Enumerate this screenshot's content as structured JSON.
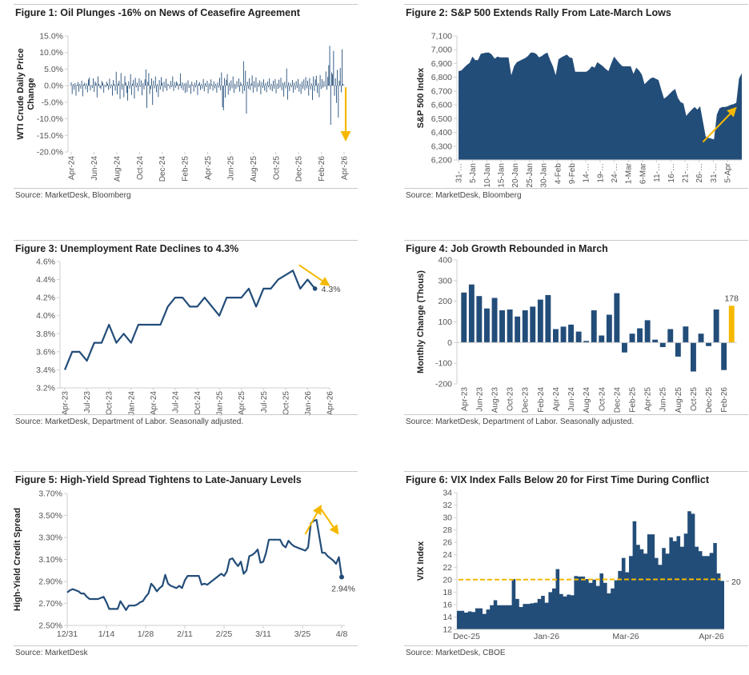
{
  "colors": {
    "series": "#234d79",
    "accent": "#f5b800",
    "axis": "#cfcfcf",
    "tick_text": "#555555"
  },
  "figures": [
    {
      "title": "Figure 1: Oil Plunges -16% on News of Ceasefire Agreement",
      "source": "Source: MarketDesk, Bloomberg"
    },
    {
      "title": "Figure 2: S&P 500 Extends Rally From Late-March Lows",
      "source": "Source: MarketDesk, Bloomberg"
    },
    {
      "title": "Figure 3: Unemployment Rate Declines to 4.3%",
      "source": "Source: MarketDesk, Department of Labor. Seasonally adjusted."
    },
    {
      "title": "Figure 4: Job Growth Rebounded in March",
      "source": "Source: MarketDesk, Department of Labor. Seasonally adjusted."
    },
    {
      "title": "Figure 5: High-Yield Spread Tightens to Late-January Levels",
      "source": "Source: MarketDesk"
    },
    {
      "title": "Figure 6: VIX Index Falls Below 20 for First Time During Conflict",
      "source": "Source: MarketDesk, CBOE"
    }
  ],
  "chart_data": [
    {
      "type": "bar",
      "title": "Figure 1: Oil Plunges -16% on News of Ceasefire Agreement",
      "ylabel": "WTI Crude Daily Price Change",
      "xlabel": "",
      "ylim": [
        -20,
        15
      ],
      "yticks": [
        "15.0%",
        "10.0%",
        "5.0%",
        "0.0%",
        "-5.0%",
        "-10.0%",
        "-15.0%",
        "-20.0%"
      ],
      "ytick_values": [
        15,
        10,
        5,
        0,
        -5,
        -10,
        -15,
        -20
      ],
      "x_tick_labels": [
        "Apr-24",
        "Jun-24",
        "Aug-24",
        "Oct-24",
        "Dec-24",
        "Feb-25",
        "Apr-25",
        "Jun-25",
        "Aug-25",
        "Oct-25",
        "Dec-25",
        "Feb-26",
        "Apr-26"
      ],
      "series": [
        {
          "name": "WTI daily change (%)",
          "values": [
            1.0,
            -2.5,
            0.5,
            -1.2,
            0.8,
            -3.0,
            0.3,
            1.1,
            -1.8,
            0.6,
            -0.9,
            1.5,
            -3.2,
            0.4,
            0.9,
            -1.1,
            0.7,
            -2.0,
            1.9,
            2.5,
            -1.4,
            0.2,
            -0.7,
            2.2,
            -1.9,
            1.3,
            0.8,
            -3.5,
            2.8,
            0.5,
            -0.6,
            -1.0,
            1.4,
            0.9,
            -2.1,
            0.3,
            -0.5,
            1.2,
            0.6,
            -1.3,
            2.1,
            -0.8,
            0.4,
            -3.0,
            1.7,
            0.5,
            -1.5,
            4.2,
            -2.6,
            0.7,
            1.5,
            -4.0,
            3.8,
            -1.2,
            0.6,
            -3.5,
            2.9,
            1.0,
            -2.2,
            -4.5,
            1.3,
            -0.9,
            3.5,
            -2.8,
            0.6,
            1.8,
            -3.9,
            2.4,
            -0.5,
            0.9,
            -1.7,
            2.2,
            -0.4,
            1.6,
            -2.9,
            0.8,
            -1.1,
            1.9,
            4.9,
            -6.7,
            1.2,
            3.8,
            -2.5,
            -1.0,
            2.2,
            -5.8,
            1.5,
            -0.8,
            2.8,
            -2.0,
            0.5,
            -3.4,
            1.7,
            -1.2,
            2.6,
            0.9,
            -1.8,
            1.2,
            -0.7,
            2.1,
            -1.5,
            0.6,
            0.3,
            -0.9,
            1.4,
            -0.4,
            2.8,
            -1.6,
            1.1,
            -0.6,
            1.3,
            0.8,
            -1.2,
            0.5,
            3.7,
            -0.8,
            1.0,
            -1.4,
            0.7,
            -2.2,
            0.9,
            -1.9,
            1.6,
            -0.7,
            0.4,
            -2.5,
            1.2,
            0.3,
            -1.8,
            0.9,
            -0.5,
            1.7,
            -2.8,
            0.6,
            1.1,
            -1.3,
            0.5,
            -0.9,
            2.0,
            -1.7,
            0.8,
            -0.4,
            1.5,
            -2.3,
            0.7,
            -1.1,
            1.9,
            0.4,
            -1.5,
            1.3,
            -0.8,
            0.6,
            -2.1,
            1.0,
            -0.6,
            2.4,
            -1.4,
            4.0,
            -6.5,
            -7.4,
            2.3,
            -3.6,
            1.8,
            3.5,
            -2.7,
            0.9,
            -1.5,
            1.6,
            -0.8,
            2.8,
            -2.2,
            0.6,
            -1.0,
            1.4,
            -0.5,
            2.2,
            -1.8,
            1.1,
            0.5,
            -2.4,
            7.4,
            -1.6,
            4.5,
            -8.4,
            1.2,
            -0.9,
            2.2,
            -1.3,
            0.7,
            3.1,
            -2.1,
            1.4,
            -0.6,
            2.5,
            -1.8,
            0.9,
            -0.4,
            1.6,
            -2.6,
            1.1,
            -0.7,
            1.9,
            -1.5,
            0.8,
            -2.0,
            1.3,
            -0.5,
            2.2,
            -1.2,
            0.6,
            -1.7,
            1.5,
            -0.9,
            2.0,
            -2.3,
            0.7,
            -1.0,
            1.8,
            -0.6,
            2.4,
            -1.4,
            0.9,
            -3.3,
            1.2,
            -0.8,
            5.2,
            -4.2,
            1.0,
            -1.6,
            0.8,
            -0.5,
            1.7,
            -2.1,
            0.9,
            -1.2,
            1.4,
            -0.7,
            2.0,
            -1.8,
            0.6,
            -2.5,
            1.3,
            -0.9,
            1.9,
            -1.4,
            2.6,
            -0.8,
            1.5,
            -3.0,
            2.3,
            -1.1,
            0.7,
            -4.3,
            2.8,
            -1.6,
            1.9,
            3.0,
            -2.2,
            0.8,
            -3.5,
            3.2,
            -1.0,
            2.0,
            -0.6,
            1.4,
            -0.3,
            4.3,
            -1.2,
            2.7,
            6.2,
            12.0,
            -11.8,
            4.0,
            3.5,
            10.5,
            -3.0,
            2.2,
            -5.2,
            4.8,
            -9.6,
            1.5,
            5.4,
            -2.0,
            11.0,
            0.5,
            -16.0
          ]
        }
      ],
      "annotations": [
        {
          "type": "arrow",
          "direction": "down",
          "label": "",
          "value": -16
        }
      ]
    },
    {
      "type": "area",
      "title": "Figure 2: S&P 500 Extends Rally From Late-March Lows",
      "ylabel": "S&P 500 Index",
      "xlabel": "",
      "ylim": [
        6200,
        7100
      ],
      "yticks": [
        "7,100",
        "7,000",
        "6,900",
        "6,800",
        "6,700",
        "6,600",
        "6,500",
        "6,400",
        "6,300",
        "6,200"
      ],
      "ytick_values": [
        7100,
        7000,
        6900,
        6800,
        6700,
        6600,
        6500,
        6400,
        6300,
        6200
      ],
      "x_tick_labels": [
        "31-…",
        "5-Jan",
        "10-Jan",
        "15-Jan",
        "20-Jan",
        "25-Jan",
        "30-Jan",
        "4-Feb",
        "9-Feb",
        "14-…",
        "19-…",
        "24-…",
        "1-Mar",
        "6-Mar",
        "11-…",
        "16-…",
        "21-…",
        "26-…",
        "31-…",
        "5-Apr"
      ],
      "series": [
        {
          "name": "S&P 500",
          "values": [
            6845,
            6850,
            6870,
            6890,
            6905,
            6950,
            6925,
            6925,
            6970,
            6975,
            6980,
            6980,
            6965,
            6935,
            6950,
            6945,
            6945,
            6945,
            6945,
            6815,
            6880,
            6910,
            6920,
            6930,
            6940,
            6955,
            6980,
            6980,
            6970,
            6945,
            6955,
            6970,
            6980,
            6925,
            6880,
            6815,
            6930,
            6945,
            6955,
            6965,
            6945,
            6940,
            6840,
            6840,
            6840,
            6840,
            6840,
            6855,
            6880,
            6870,
            6910,
            6895,
            6880,
            6860,
            6845,
            6900,
            6950,
            6925,
            6900,
            6880,
            6880,
            6880,
            6880,
            6825,
            6870,
            6850,
            6820,
            6750,
            6770,
            6790,
            6800,
            6790,
            6780,
            6710,
            6645,
            6660,
            6680,
            6700,
            6715,
            6650,
            6620,
            6610,
            6520,
            6545,
            6565,
            6585,
            6565,
            6590,
            6480,
            6370,
            6360,
            6355,
            6350,
            6530,
            6575,
            6585,
            6585,
            6590,
            6600,
            6605,
            6615,
            6790,
            6830
          ]
        }
      ],
      "annotations": [
        {
          "type": "arrow",
          "direction": "up"
        }
      ]
    },
    {
      "type": "line",
      "title": "Figure 3: Unemployment Rate Declines to 4.3%",
      "ylabel": "",
      "xlabel": "",
      "ylim": [
        3.2,
        4.6
      ],
      "yticks": [
        "4.6%",
        "4.4%",
        "4.2%",
        "4.0%",
        "3.8%",
        "3.6%",
        "3.4%",
        "3.2%"
      ],
      "ytick_values": [
        4.6,
        4.4,
        4.2,
        4.0,
        3.8,
        3.6,
        3.4,
        3.2
      ],
      "x_tick_labels": [
        "Apr-23",
        "Jul-23",
        "Oct-23",
        "Jan-24",
        "Apr-24",
        "Jul-24",
        "Oct-24",
        "Jan-25",
        "Apr-25",
        "Jul-25",
        "Oct-25",
        "Jan-26",
        "Apr-26"
      ],
      "series": [
        {
          "name": "Unemployment Rate",
          "values": [
            3.4,
            3.6,
            3.6,
            3.5,
            3.7,
            3.7,
            3.9,
            3.7,
            3.8,
            3.7,
            3.9,
            3.9,
            3.9,
            3.9,
            4.1,
            4.2,
            4.2,
            4.1,
            4.1,
            4.2,
            4.1,
            4.0,
            4.2,
            4.2,
            4.2,
            4.3,
            4.1,
            4.3,
            4.3,
            4.4,
            4.45,
            4.5,
            null,
            4.3,
            4.4,
            4.3
          ]
        }
      ],
      "end_label": "4.3%",
      "annotations": [
        {
          "type": "arrow",
          "direction": "down-right"
        }
      ]
    },
    {
      "type": "bar",
      "title": "Figure 4: Job Growth Rebounded in March",
      "ylabel": "Monthly Change (Thous)",
      "xlabel": "",
      "ylim": [
        -200,
        400
      ],
      "yticks": [
        "400",
        "300",
        "200",
        "100",
        "0",
        "-100",
        "-200"
      ],
      "ytick_values": [
        400,
        300,
        200,
        100,
        0,
        -100,
        -200
      ],
      "x_tick_labels": [
        "Apr-23",
        "Jun-23",
        "Aug-23",
        "Oct-23",
        "Dec-23",
        "Feb-24",
        "Apr-24",
        "Jun-24",
        "Aug-24",
        "Oct-24",
        "Dec-24",
        "Feb-25",
        "Apr-25",
        "Jun-25",
        "Aug-25",
        "Oct-25",
        "Dec-25",
        "Feb-26"
      ],
      "categories": [
        "Apr-23",
        "May-23",
        "Jun-23",
        "Jul-23",
        "Aug-23",
        "Sep-23",
        "Oct-23",
        "Nov-23",
        "Dec-23",
        "Jan-24",
        "Feb-24",
        "Mar-24",
        "Apr-24",
        "May-24",
        "Jun-24",
        "Jul-24",
        "Aug-24",
        "Sep-24",
        "Oct-24",
        "Nov-24",
        "Dec-24",
        "Jan-25",
        "Feb-25",
        "Mar-25",
        "Apr-25",
        "May-25",
        "Jun-25",
        "Jul-25",
        "Aug-25",
        "Sep-25",
        "Oct-25",
        "Nov-25",
        "Dec-25",
        "Jan-26",
        "Feb-26",
        "Mar-26"
      ],
      "values": [
        242,
        281,
        225,
        165,
        216,
        156,
        160,
        126,
        156,
        174,
        208,
        230,
        65,
        77,
        87,
        53,
        8,
        156,
        34,
        135,
        239,
        -48,
        43,
        69,
        108,
        14,
        -22,
        65,
        -68,
        78,
        -140,
        43,
        -17,
        160,
        -133,
        178
      ],
      "highlight_last": true,
      "data_labels": [
        {
          "category": "Mar-26",
          "label": "178"
        }
      ]
    },
    {
      "type": "line",
      "title": "Figure 5: High-Yield Spread Tightens to Late-January Levels",
      "ylabel": "High-Yield Credit Spread",
      "xlabel": "",
      "ylim": [
        2.5,
        3.7
      ],
      "yticks": [
        "3.70%",
        "3.50%",
        "3.30%",
        "3.10%",
        "2.90%",
        "2.70%",
        "2.50%"
      ],
      "ytick_values": [
        3.7,
        3.5,
        3.3,
        3.1,
        2.9,
        2.7,
        2.5
      ],
      "x_tick_labels": [
        "12/31",
        "1/14",
        "1/28",
        "2/11",
        "2/25",
        "3/11",
        "3/25",
        "4/8"
      ],
      "series": [
        {
          "name": "HY Spread",
          "values": [
            2.8,
            2.82,
            2.83,
            2.82,
            2.81,
            2.79,
            2.79,
            2.76,
            2.74,
            2.74,
            2.74,
            2.74,
            2.75,
            2.76,
            2.71,
            2.65,
            2.65,
            2.65,
            2.65,
            2.72,
            2.68,
            2.64,
            2.68,
            2.68,
            2.68,
            2.69,
            2.71,
            2.72,
            2.76,
            2.79,
            2.88,
            2.85,
            2.81,
            2.84,
            2.86,
            2.96,
            2.88,
            2.86,
            2.85,
            2.84,
            2.86,
            2.84,
            2.91,
            2.95,
            2.95,
            2.95,
            2.95,
            2.95,
            2.87,
            2.88,
            2.87,
            2.89,
            2.91,
            2.93,
            2.95,
            2.97,
            2.95,
            2.99,
            3.1,
            3.11,
            3.07,
            3.04,
            3.08,
            2.97,
            3.0,
            3.13,
            3.14,
            3.16,
            3.19,
            3.07,
            3.08,
            3.16,
            3.28,
            3.28,
            3.28,
            3.28,
            3.28,
            3.23,
            3.21,
            3.27,
            3.24,
            3.22,
            3.21,
            3.2,
            3.19,
            3.18,
            3.21,
            3.43,
            3.45,
            3.46,
            3.31,
            3.16,
            3.16,
            3.13,
            3.11,
            3.09,
            3.06,
            3.12,
            2.94
          ]
        }
      ],
      "end_label": "2.94%",
      "annotations": [
        {
          "type": "arrow",
          "direction": "up-right"
        },
        {
          "type": "arrow",
          "direction": "down-right"
        }
      ]
    },
    {
      "type": "area",
      "title": "Figure 6: VIX Index Falls Below 20 for First Time During Conflict",
      "ylabel": "VIX Index",
      "xlabel": "",
      "ylim": [
        12,
        34
      ],
      "yticks": [
        "34",
        "32",
        "30",
        "28",
        "26",
        "24",
        "22",
        "20",
        "18",
        "16",
        "14",
        "12"
      ],
      "ytick_values": [
        34,
        32,
        30,
        28,
        26,
        24,
        22,
        20,
        18,
        16,
        14,
        12
      ],
      "x_tick_labels": [
        "Dec-25",
        "Jan-26",
        "Mar-26",
        "Apr-26"
      ],
      "series": [
        {
          "name": "VIX",
          "values": [
            15.0,
            15.0,
            14.7,
            14.9,
            14.8,
            15.4,
            15.4,
            14.5,
            15.2,
            15.9,
            16.7,
            15.9,
            15.9,
            15.9,
            15.9,
            20.1,
            16.9,
            15.6,
            16.1,
            16.1,
            16.2,
            16.3,
            16.9,
            17.4,
            16.3,
            18.0,
            18.6,
            21.7,
            17.7,
            17.3,
            17.6,
            17.5,
            20.6,
            20.5,
            20.5,
            20.1,
            19.5,
            20.0,
            19.0,
            21.0,
            19.5,
            17.8,
            18.6,
            19.9,
            21.4,
            23.5,
            21.2,
            23.8,
            29.4,
            25.6,
            24.9,
            24.2,
            27.3,
            27.3,
            23.5,
            22.4,
            25.1,
            24.2,
            26.8,
            26.2,
            27.0,
            25.3,
            27.4,
            31.0,
            30.6,
            25.3,
            24.6,
            23.8,
            23.8,
            24.3,
            25.9,
            21.0,
            19.8
          ]
        }
      ],
      "reference_line": {
        "value": 20,
        "label": "20",
        "style": "dashed"
      }
    }
  ]
}
